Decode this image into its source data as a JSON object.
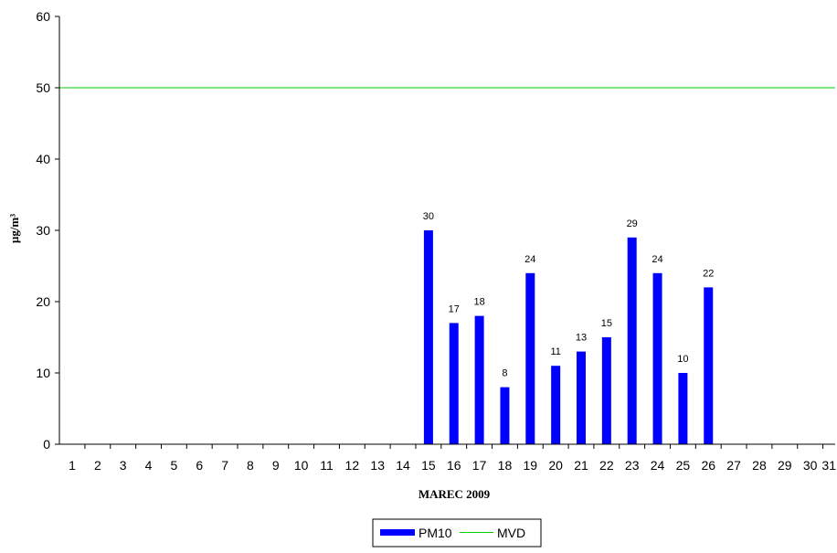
{
  "chart_data": {
    "type": "bar",
    "xlabel": "MAREC 2009",
    "ylabel": "µg/m³",
    "ylim": [
      0,
      60
    ],
    "yticks": [
      "0",
      "10",
      "20",
      "30",
      "40",
      "50",
      "60"
    ],
    "categories": [
      "1",
      "2",
      "3",
      "4",
      "5",
      "6",
      "7",
      "8",
      "9",
      "10",
      "11",
      "12",
      "13",
      "14",
      "15",
      "16",
      "17",
      "18",
      "19",
      "20",
      "21",
      "22",
      "23",
      "24",
      "25",
      "26",
      "27",
      "28",
      "29",
      "30",
      "31"
    ],
    "series": [
      {
        "name": "PM10",
        "color": "#0000ff",
        "values": [
          null,
          null,
          null,
          null,
          null,
          null,
          null,
          null,
          null,
          null,
          null,
          null,
          null,
          null,
          30,
          17,
          18,
          8,
          24,
          11,
          13,
          15,
          29,
          24,
          10,
          22,
          null,
          null,
          null,
          null,
          null
        ]
      }
    ],
    "reference_line": {
      "name": "MVD",
      "value": 50,
      "color": "#00cc00"
    },
    "legend_position": "bottom-center",
    "grid": false
  }
}
